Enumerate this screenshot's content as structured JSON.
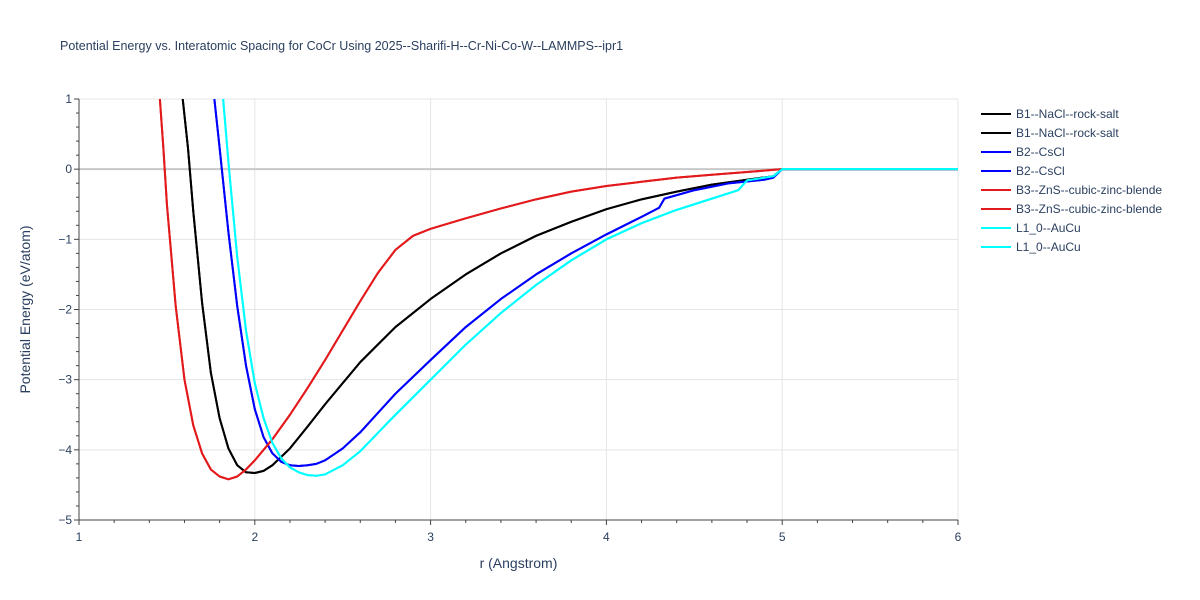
{
  "chart_data": {
    "type": "line",
    "title": "Potential Energy vs. Interatomic Spacing for CoCr Using 2025--Sharifi-H--Cr-Ni-Co-W--LAMMPS--ipr1",
    "xlabel": "r (Angstrom)",
    "ylabel": "Potential Energy (eV/atom)",
    "xlim": [
      1,
      6
    ],
    "ylim": [
      -5,
      1
    ],
    "xticks": [
      1,
      2,
      3,
      4,
      5,
      6
    ],
    "xtick_labels": [
      "1",
      "2",
      "3",
      "4",
      "5",
      "6"
    ],
    "yticks": [
      -5,
      -4,
      -3,
      -2,
      -1,
      0,
      1
    ],
    "ytick_labels": [
      "−5",
      "−4",
      "−3",
      "−2",
      "−1",
      "0",
      "1"
    ],
    "grid": true,
    "legend_position": "top-right",
    "series": [
      {
        "name": "B1--NaCl--rock-salt",
        "color": "#000000",
        "x": [
          1.59,
          1.62,
          1.65,
          1.7,
          1.75,
          1.8,
          1.85,
          1.9,
          1.95,
          2.0,
          2.05,
          2.1,
          2.2,
          2.3,
          2.4,
          2.5,
          2.6,
          2.8,
          3.0,
          3.2,
          3.4,
          3.6,
          3.8,
          4.0,
          4.2,
          4.4,
          4.6,
          4.8,
          4.95,
          5.0,
          6.0
        ],
        "y": [
          1.0,
          0.3,
          -0.6,
          -1.9,
          -2.9,
          -3.55,
          -3.98,
          -4.22,
          -4.32,
          -4.33,
          -4.3,
          -4.22,
          -3.98,
          -3.67,
          -3.35,
          -3.05,
          -2.75,
          -2.25,
          -1.85,
          -1.5,
          -1.2,
          -0.95,
          -0.75,
          -0.57,
          -0.43,
          -0.32,
          -0.22,
          -0.15,
          -0.1,
          0.0,
          0.0
        ]
      },
      {
        "name": "B1--NaCl--rock-salt",
        "color": "#000000",
        "x": [
          1.59,
          1.62,
          1.65,
          1.7,
          1.75,
          1.8,
          1.85,
          1.9,
          1.95,
          2.0,
          2.05,
          2.1,
          2.2,
          2.3,
          2.4,
          2.5,
          2.6,
          2.8,
          3.0,
          3.2,
          3.4,
          3.6,
          3.8,
          4.0,
          4.2,
          4.4,
          4.6,
          4.8,
          4.95,
          5.0,
          6.0
        ],
        "y": [
          1.0,
          0.3,
          -0.6,
          -1.9,
          -2.9,
          -3.55,
          -3.98,
          -4.22,
          -4.32,
          -4.33,
          -4.3,
          -4.22,
          -3.98,
          -3.67,
          -3.35,
          -3.05,
          -2.75,
          -2.25,
          -1.85,
          -1.5,
          -1.2,
          -0.95,
          -0.75,
          -0.57,
          -0.43,
          -0.32,
          -0.22,
          -0.15,
          -0.1,
          0.0,
          0.0
        ]
      },
      {
        "name": "B2--CsCl",
        "color": "#0000ff",
        "x": [
          1.77,
          1.8,
          1.85,
          1.9,
          1.95,
          2.0,
          2.05,
          2.1,
          2.15,
          2.2,
          2.25,
          2.3,
          2.35,
          2.4,
          2.5,
          2.6,
          2.8,
          3.0,
          3.2,
          3.4,
          3.6,
          3.8,
          4.0,
          4.2,
          4.3,
          4.33,
          4.5,
          4.7,
          4.9,
          4.95,
          5.0,
          6.0
        ],
        "y": [
          1.0,
          0.3,
          -0.9,
          -1.95,
          -2.8,
          -3.42,
          -3.82,
          -4.05,
          -4.17,
          -4.22,
          -4.23,
          -4.22,
          -4.2,
          -4.15,
          -3.98,
          -3.75,
          -3.2,
          -2.72,
          -2.25,
          -1.85,
          -1.5,
          -1.2,
          -0.93,
          -0.68,
          -0.55,
          -0.42,
          -0.3,
          -0.2,
          -0.15,
          -0.12,
          0.0,
          0.0
        ]
      },
      {
        "name": "B2--CsCl",
        "color": "#0000ff",
        "x": [
          1.77,
          1.8,
          1.85,
          1.9,
          1.95,
          2.0,
          2.05,
          2.1,
          2.15,
          2.2,
          2.25,
          2.3,
          2.35,
          2.4,
          2.5,
          2.6,
          2.8,
          3.0,
          3.2,
          3.4,
          3.6,
          3.8,
          4.0,
          4.2,
          4.3,
          4.33,
          4.5,
          4.7,
          4.9,
          4.95,
          5.0,
          6.0
        ],
        "y": [
          1.0,
          0.3,
          -0.9,
          -1.95,
          -2.8,
          -3.42,
          -3.82,
          -4.05,
          -4.17,
          -4.22,
          -4.23,
          -4.22,
          -4.2,
          -4.15,
          -3.98,
          -3.75,
          -3.2,
          -2.72,
          -2.25,
          -1.85,
          -1.5,
          -1.2,
          -0.93,
          -0.68,
          -0.55,
          -0.42,
          -0.3,
          -0.2,
          -0.15,
          -0.12,
          0.0,
          0.0
        ]
      },
      {
        "name": "B3--ZnS--cubic-zinc-blende",
        "color": "#e31a1c",
        "x": [
          1.46,
          1.48,
          1.5,
          1.55,
          1.6,
          1.65,
          1.7,
          1.75,
          1.8,
          1.85,
          1.9,
          1.95,
          2.0,
          2.1,
          2.2,
          2.3,
          2.4,
          2.5,
          2.6,
          2.7,
          2.8,
          2.9,
          3.0,
          3.2,
          3.4,
          3.6,
          3.8,
          4.0,
          4.2,
          4.4,
          4.6,
          4.8,
          5.0,
          6.0
        ],
        "y": [
          1.0,
          0.3,
          -0.5,
          -1.95,
          -3.0,
          -3.65,
          -4.05,
          -4.28,
          -4.38,
          -4.42,
          -4.38,
          -4.28,
          -4.15,
          -3.85,
          -3.5,
          -3.12,
          -2.72,
          -2.3,
          -1.88,
          -1.48,
          -1.15,
          -0.95,
          -0.85,
          -0.7,
          -0.56,
          -0.43,
          -0.32,
          -0.24,
          -0.18,
          -0.12,
          -0.08,
          -0.04,
          0.0,
          0.0
        ]
      },
      {
        "name": "B3--ZnS--cubic-zinc-blende",
        "color": "#e31a1c",
        "x": [
          1.46,
          1.48,
          1.5,
          1.55,
          1.6,
          1.65,
          1.7,
          1.75,
          1.8,
          1.85,
          1.9,
          1.95,
          2.0,
          2.1,
          2.2,
          2.3,
          2.4,
          2.5,
          2.6,
          2.7,
          2.8,
          2.9,
          3.0,
          3.2,
          3.4,
          3.6,
          3.8,
          4.0,
          4.2,
          4.4,
          4.6,
          4.8,
          5.0,
          6.0
        ],
        "y": [
          1.0,
          0.3,
          -0.5,
          -1.95,
          -3.0,
          -3.65,
          -4.05,
          -4.28,
          -4.38,
          -4.42,
          -4.38,
          -4.28,
          -4.15,
          -3.85,
          -3.5,
          -3.12,
          -2.72,
          -2.3,
          -1.88,
          -1.48,
          -1.15,
          -0.95,
          -0.85,
          -0.7,
          -0.56,
          -0.43,
          -0.32,
          -0.24,
          -0.18,
          -0.12,
          -0.08,
          -0.04,
          0.0,
          0.0
        ]
      },
      {
        "name": "L1_0--AuCu",
        "color": "#00ffff",
        "x": [
          1.82,
          1.85,
          1.9,
          1.95,
          2.0,
          2.05,
          2.1,
          2.15,
          2.2,
          2.25,
          2.3,
          2.35,
          2.4,
          2.5,
          2.6,
          2.8,
          3.0,
          3.2,
          3.4,
          3.6,
          3.8,
          4.0,
          4.2,
          4.4,
          4.6,
          4.75,
          4.8,
          4.95,
          5.0,
          6.0
        ],
        "y": [
          1.0,
          0.1,
          -1.25,
          -2.3,
          -3.05,
          -3.55,
          -3.9,
          -4.12,
          -4.25,
          -4.32,
          -4.36,
          -4.37,
          -4.35,
          -4.22,
          -4.02,
          -3.5,
          -3.0,
          -2.5,
          -2.05,
          -1.65,
          -1.3,
          -1.0,
          -0.77,
          -0.58,
          -0.42,
          -0.3,
          -0.16,
          -0.1,
          0.0,
          0.0
        ]
      },
      {
        "name": "L1_0--AuCu",
        "color": "#00ffff",
        "x": [
          1.82,
          1.85,
          1.9,
          1.95,
          2.0,
          2.05,
          2.1,
          2.15,
          2.2,
          2.25,
          2.3,
          2.35,
          2.4,
          2.5,
          2.6,
          2.8,
          3.0,
          3.2,
          3.4,
          3.6,
          3.8,
          4.0,
          4.2,
          4.4,
          4.6,
          4.75,
          4.8,
          4.95,
          5.0,
          6.0
        ],
        "y": [
          1.0,
          0.1,
          -1.25,
          -2.3,
          -3.05,
          -3.55,
          -3.9,
          -4.12,
          -4.25,
          -4.32,
          -4.36,
          -4.37,
          -4.35,
          -4.22,
          -4.02,
          -3.5,
          -3.0,
          -2.5,
          -2.05,
          -1.65,
          -1.3,
          -1.0,
          -0.77,
          -0.58,
          -0.42,
          -0.3,
          -0.16,
          -0.1,
          0.0,
          0.0
        ]
      }
    ]
  }
}
